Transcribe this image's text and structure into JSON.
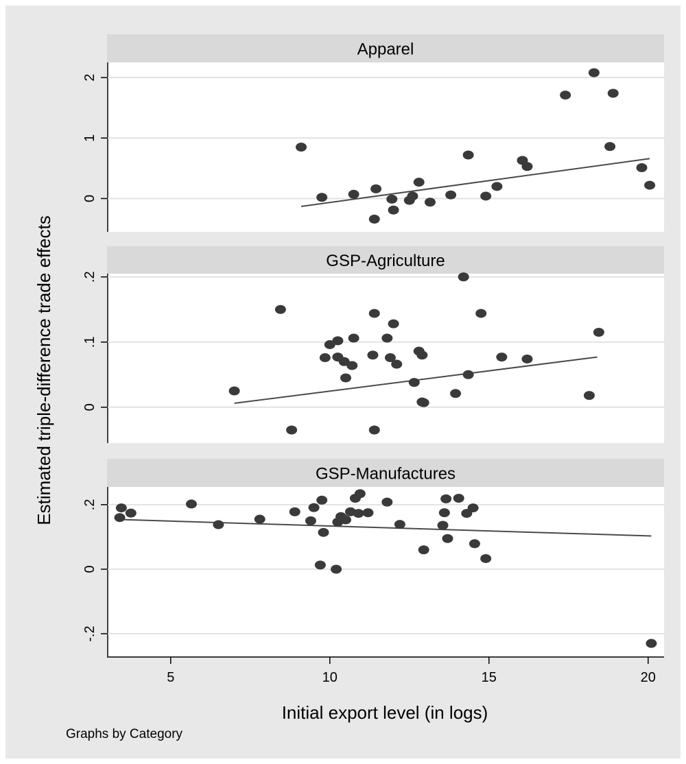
{
  "figure": {
    "ylabel": "Estimated triple-difference trade effects",
    "xlabel": "Initial export level (in logs)",
    "note": "Graphs by Category",
    "background": "#e8e8e8",
    "plot_background": "#ffffff",
    "strip_background": "#d9d9d9",
    "marker_color": "#3a3a3a",
    "line_color": "#4a4a4a"
  },
  "chart_data": [
    {
      "type": "scatter",
      "title": "Apparel",
      "xlim": [
        3,
        20.5
      ],
      "ylim": [
        -0.55,
        2.25
      ],
      "yticks": [
        0,
        1,
        2
      ],
      "yticklabels": [
        "0",
        "1",
        "2"
      ],
      "grid": true,
      "points": [
        [
          9.1,
          0.85
        ],
        [
          9.75,
          0.02
        ],
        [
          10.75,
          0.07
        ],
        [
          11.4,
          -0.34
        ],
        [
          11.45,
          0.16
        ],
        [
          11.95,
          -0.01
        ],
        [
          12.0,
          -0.19
        ],
        [
          12.5,
          -0.03
        ],
        [
          12.6,
          0.04
        ],
        [
          12.8,
          0.27
        ],
        [
          13.15,
          -0.06
        ],
        [
          13.8,
          0.06
        ],
        [
          14.35,
          0.72
        ],
        [
          14.9,
          0.04
        ],
        [
          15.25,
          0.2
        ],
        [
          16.05,
          0.63
        ],
        [
          16.2,
          0.53
        ],
        [
          17.4,
          1.71
        ],
        [
          18.3,
          2.08
        ],
        [
          18.8,
          0.86
        ],
        [
          18.9,
          1.74
        ],
        [
          19.8,
          0.51
        ],
        [
          20.05,
          0.22
        ]
      ],
      "fit_line": {
        "x": [
          9.1,
          20.05
        ],
        "y": [
          -0.13,
          0.66
        ]
      }
    },
    {
      "type": "scatter",
      "title": "GSP-Agriculture",
      "xlim": [
        3,
        20.5
      ],
      "ylim": [
        -0.055,
        0.205
      ],
      "yticks": [
        0,
        0.1,
        0.2
      ],
      "yticklabels": [
        "0",
        ".1",
        ".2"
      ],
      "grid": true,
      "points": [
        [
          7.0,
          0.025
        ],
        [
          8.45,
          0.15
        ],
        [
          8.8,
          -0.035
        ],
        [
          9.85,
          0.076
        ],
        [
          10.0,
          0.096
        ],
        [
          10.25,
          0.102
        ],
        [
          10.25,
          0.077
        ],
        [
          10.45,
          0.07
        ],
        [
          10.5,
          0.045
        ],
        [
          10.7,
          0.064
        ],
        [
          10.75,
          0.106
        ],
        [
          11.35,
          0.08
        ],
        [
          11.4,
          0.144
        ],
        [
          11.4,
          -0.035
        ],
        [
          11.8,
          0.106
        ],
        [
          11.9,
          0.076
        ],
        [
          12.0,
          0.128
        ],
        [
          12.1,
          0.066
        ],
        [
          12.65,
          0.038
        ],
        [
          12.8,
          0.086
        ],
        [
          12.9,
          0.08
        ],
        [
          12.9,
          0.008
        ],
        [
          12.95,
          0.007
        ],
        [
          13.95,
          0.021
        ],
        [
          14.2,
          0.2
        ],
        [
          14.35,
          0.05
        ],
        [
          14.75,
          0.144
        ],
        [
          15.4,
          0.077
        ],
        [
          16.2,
          0.074
        ],
        [
          18.15,
          0.018
        ],
        [
          18.45,
          0.115
        ]
      ],
      "fit_line": {
        "x": [
          7.0,
          18.4
        ],
        "y": [
          0.006,
          0.077
        ]
      }
    },
    {
      "type": "scatter",
      "title": "GSP-Manufactures",
      "xlim": [
        3,
        20.5
      ],
      "ylim": [
        -0.27,
        0.255
      ],
      "yticks": [
        -0.2,
        0,
        0.2
      ],
      "yticklabels": [
        "-.2",
        "0",
        ".2"
      ],
      "grid": true,
      "points": [
        [
          3.4,
          0.16
        ],
        [
          3.45,
          0.19
        ],
        [
          3.75,
          0.174
        ],
        [
          5.65,
          0.202
        ],
        [
          6.5,
          0.138
        ],
        [
          7.8,
          0.155
        ],
        [
          8.9,
          0.178
        ],
        [
          9.4,
          0.15
        ],
        [
          9.5,
          0.191
        ],
        [
          9.7,
          0.013
        ],
        [
          9.75,
          0.214
        ],
        [
          9.8,
          0.114
        ],
        [
          10.2,
          0.0
        ],
        [
          10.25,
          0.146
        ],
        [
          10.35,
          0.163
        ],
        [
          10.45,
          0.155
        ],
        [
          10.5,
          0.153
        ],
        [
          10.65,
          0.178
        ],
        [
          10.8,
          0.22
        ],
        [
          10.9,
          0.173
        ],
        [
          10.95,
          0.234
        ],
        [
          11.2,
          0.175
        ],
        [
          11.8,
          0.208
        ],
        [
          12.2,
          0.139
        ],
        [
          12.95,
          0.06
        ],
        [
          13.55,
          0.136
        ],
        [
          13.6,
          0.175
        ],
        [
          13.65,
          0.218
        ],
        [
          13.7,
          0.095
        ],
        [
          14.05,
          0.22
        ],
        [
          14.3,
          0.173
        ],
        [
          14.5,
          0.19
        ],
        [
          14.55,
          0.079
        ],
        [
          14.9,
          0.033
        ],
        [
          20.1,
          -0.23
        ]
      ],
      "fit_line": {
        "x": [
          3.4,
          20.1
        ],
        "y": [
          0.154,
          0.103
        ]
      }
    }
  ],
  "x_axis": {
    "ticks": [
      5,
      10,
      15,
      20
    ],
    "ticklabels": [
      "5",
      "10",
      "15",
      "20"
    ]
  }
}
